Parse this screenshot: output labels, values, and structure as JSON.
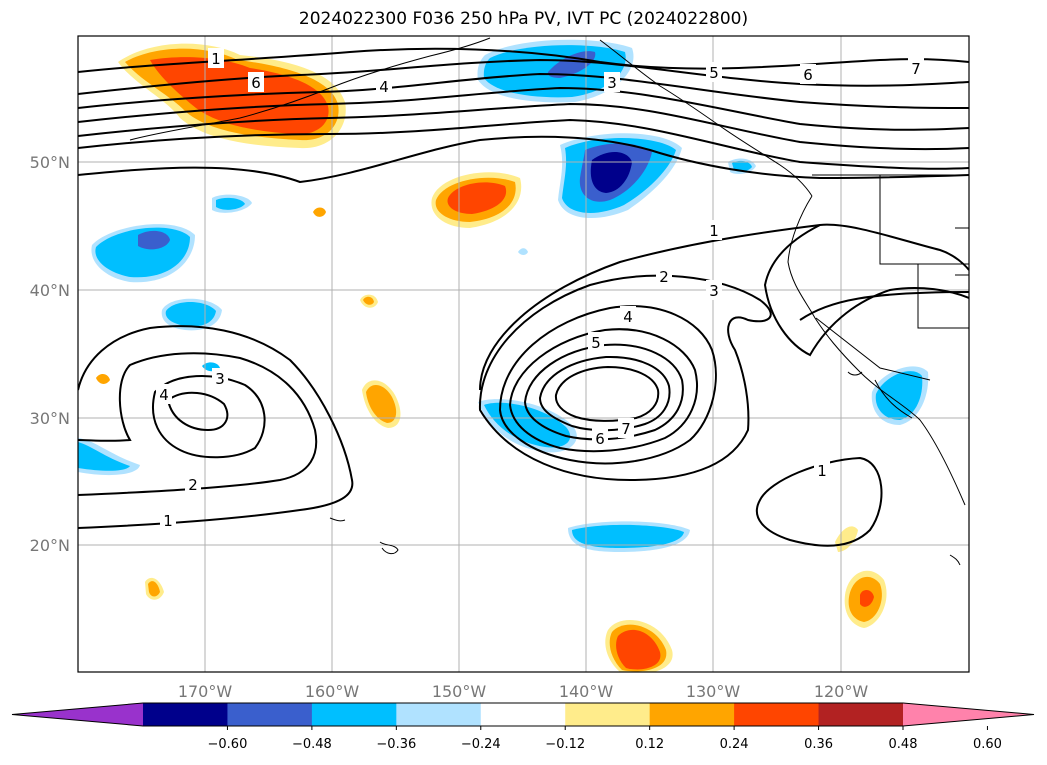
{
  "title": "2024022300 F036 250 hPa PV, IVT PC (2024022800)",
  "axes": {
    "lon_labels": [
      "170°W",
      "160°W",
      "150°W",
      "140°W",
      "130°W",
      "120°W"
    ],
    "lat_labels": [
      "50°N",
      "40°N",
      "30°N",
      "20°N"
    ]
  },
  "colorbar": {
    "ticks": [
      "−0.60",
      "−0.48",
      "−0.36",
      "−0.24",
      "−0.12",
      "0.12",
      "0.24",
      "0.36",
      "0.48",
      "0.60"
    ],
    "colors": [
      "#9932cc",
      "#00008b",
      "#3a5fcd",
      "#00bfff",
      "#b0e2ff",
      "#ffffff",
      "#ffec8b",
      "#ffa500",
      "#ff4500",
      "#b22222",
      "#ff82ab"
    ],
    "extend": "both"
  },
  "contour_labels": [
    "1",
    "6",
    "4",
    "3",
    "5",
    "6",
    "7",
    "1",
    "2",
    "3",
    "4",
    "5",
    "7",
    "6",
    "3",
    "4",
    "2",
    "1",
    "1"
  ],
  "colors": {
    "pv_positive": [
      "#ffec8b",
      "#ffa500",
      "#ff4500"
    ],
    "pv_negative": [
      "#b0e2ff",
      "#00bfff",
      "#3a5fcd",
      "#00008b"
    ]
  }
}
